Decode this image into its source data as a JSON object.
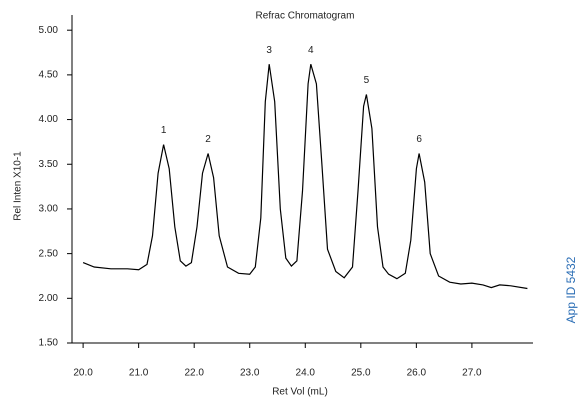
{
  "chart_data": {
    "type": "line",
    "title": "Refrac Chromatogram",
    "x_label": "Ret Vol (mL)",
    "y_label": "Rel Inten X10-1",
    "side_note": "App ID 5432",
    "xlim": [
      19.8,
      28.1
    ],
    "ylim": [
      1.5,
      5.17
    ],
    "xticks": [
      {
        "value": 20,
        "label": "20.0"
      },
      {
        "value": 21,
        "label": "21.0"
      },
      {
        "value": 22,
        "label": "22.0"
      },
      {
        "value": 23,
        "label": "23.0"
      },
      {
        "value": 24,
        "label": "24.0"
      },
      {
        "value": 25,
        "label": "25.0"
      },
      {
        "value": 26,
        "label": "26.0"
      },
      {
        "value": 27,
        "label": "27.0"
      }
    ],
    "yticks": [
      {
        "value": 1.5,
        "label": "1.50"
      },
      {
        "value": 2,
        "label": "2.00"
      },
      {
        "value": 2.5,
        "label": "2.50"
      },
      {
        "value": 3,
        "label": "3.00"
      },
      {
        "value": 3.5,
        "label": "3.50"
      },
      {
        "value": 4,
        "label": "4.00"
      },
      {
        "value": 4.5,
        "label": "4.50"
      },
      {
        "value": 5,
        "label": "5.00"
      }
    ],
    "color": "#000000",
    "x": [
      20.0,
      20.2,
      20.5,
      20.8,
      21.0,
      21.15,
      21.25,
      21.35,
      21.45,
      21.55,
      21.65,
      21.75,
      21.85,
      21.95,
      22.05,
      22.15,
      22.25,
      22.35,
      22.45,
      22.6,
      22.8,
      23.0,
      23.1,
      23.2,
      23.28,
      23.35,
      23.45,
      23.55,
      23.65,
      23.75,
      23.85,
      23.95,
      24.05,
      24.1,
      24.2,
      24.3,
      24.4,
      24.55,
      24.7,
      24.85,
      24.95,
      25.05,
      25.1,
      25.2,
      25.3,
      25.4,
      25.5,
      25.65,
      25.8,
      25.9,
      26.0,
      26.05,
      26.15,
      26.25,
      26.4,
      26.6,
      26.8,
      27.0,
      27.2,
      27.35,
      27.5,
      27.7,
      28.0
    ],
    "values": [
      2.4,
      2.35,
      2.33,
      2.33,
      2.32,
      2.38,
      2.7,
      3.4,
      3.72,
      3.45,
      2.8,
      2.42,
      2.36,
      2.4,
      2.8,
      3.4,
      3.62,
      3.35,
      2.7,
      2.35,
      2.28,
      2.27,
      2.35,
      2.9,
      4.2,
      4.62,
      4.2,
      3.0,
      2.45,
      2.36,
      2.42,
      3.2,
      4.4,
      4.62,
      4.4,
      3.5,
      2.55,
      2.3,
      2.23,
      2.35,
      3.2,
      4.15,
      4.28,
      3.9,
      2.8,
      2.35,
      2.27,
      2.22,
      2.28,
      2.65,
      3.45,
      3.62,
      3.3,
      2.5,
      2.25,
      2.18,
      2.16,
      2.17,
      2.15,
      2.12,
      2.15,
      2.14,
      2.11
    ],
    "peaks": [
      {
        "label": "1",
        "x": 21.45,
        "y": 3.72
      },
      {
        "label": "2",
        "x": 22.25,
        "y": 3.62
      },
      {
        "label": "3",
        "x": 23.35,
        "y": 4.62
      },
      {
        "label": "4",
        "x": 24.1,
        "y": 4.62
      },
      {
        "label": "5",
        "x": 25.1,
        "y": 4.28
      },
      {
        "label": "6",
        "x": 26.05,
        "y": 3.62
      }
    ]
  }
}
